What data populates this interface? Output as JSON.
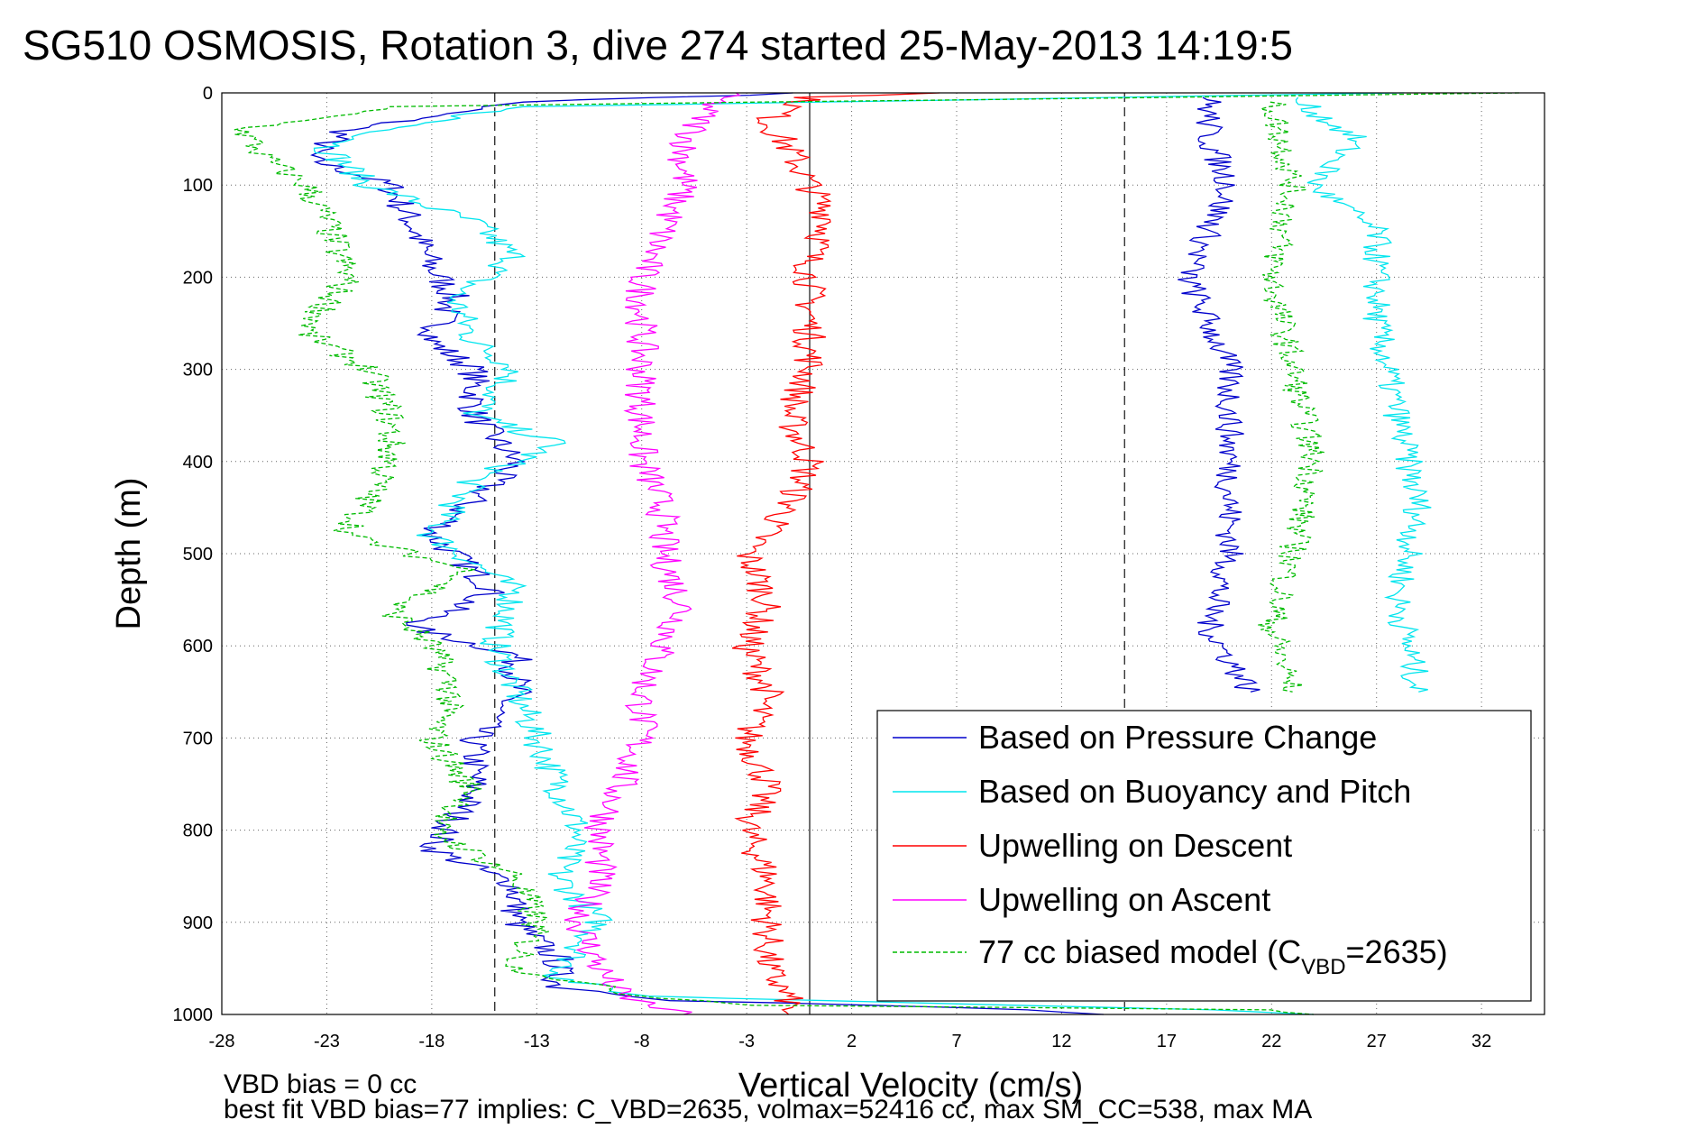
{
  "chart_data": {
    "type": "line",
    "title": "SG510 OSMOSIS, Rotation 3, dive 274 started 25-May-2013 14:19:5",
    "xlabel": "Vertical Velocity (cm/s)",
    "ylabel": "Depth (m)",
    "xlim": [
      -28,
      35
    ],
    "ylim": [
      1000,
      0
    ],
    "y_reversed": true,
    "x_ticks": [
      "-28",
      "-23",
      "-18",
      "-13",
      "-8",
      "-3",
      "2",
      "7",
      "12",
      "17",
      "22",
      "27",
      "32"
    ],
    "y_ticks": [
      "0",
      "100",
      "200",
      "300",
      "400",
      "500",
      "600",
      "700",
      "800",
      "900",
      "1000"
    ],
    "grid": true,
    "legend_position": "bottom-right",
    "reference_lines": [
      {
        "x": -15,
        "style": "dashed"
      },
      {
        "x": 0,
        "style": "solid"
      },
      {
        "x": 15,
        "style": "dashed"
      }
    ],
    "series": [
      {
        "name": "Based on Pressure Change",
        "color": "#0000cc",
        "style": "solid",
        "points": [
          [
            0,
            0
          ],
          [
            -14,
            10
          ],
          [
            -22,
            40
          ],
          [
            -24,
            70
          ],
          [
            -20,
            100
          ],
          [
            -19,
            140
          ],
          [
            -18,
            190
          ],
          [
            -17,
            220
          ],
          [
            -18,
            270
          ],
          [
            -16,
            300
          ],
          [
            -16,
            350
          ],
          [
            -14,
            400
          ],
          [
            -16,
            440
          ],
          [
            -18,
            480
          ],
          [
            -16,
            520
          ],
          [
            -15,
            540
          ],
          [
            -19,
            580
          ],
          [
            -14,
            610
          ],
          [
            -14,
            650
          ],
          [
            -16,
            700
          ],
          [
            -16,
            760
          ],
          [
            -18,
            820
          ],
          [
            -14,
            860
          ],
          [
            -14,
            900
          ],
          [
            -12,
            940
          ],
          [
            -12,
            970
          ],
          [
            -6,
            985
          ],
          [
            3,
            990
          ],
          [
            10,
            995
          ],
          [
            14,
            1000
          ]
        ]
      },
      {
        "name": "Based on Buoyancy and Pitch",
        "color": "#00e5ee",
        "style": "solid",
        "points": [
          [
            28,
            0
          ],
          [
            -14,
            15
          ],
          [
            -20,
            40
          ],
          [
            -23,
            60
          ],
          [
            -21,
            100
          ],
          [
            -16,
            140
          ],
          [
            -14,
            180
          ],
          [
            -17,
            220
          ],
          [
            -16,
            270
          ],
          [
            -14,
            300
          ],
          [
            -16,
            350
          ],
          [
            -12,
            380
          ],
          [
            -16,
            420
          ],
          [
            -18,
            480
          ],
          [
            -14,
            540
          ],
          [
            -15,
            600
          ],
          [
            -14,
            650
          ],
          [
            -13,
            700
          ],
          [
            -12,
            750
          ],
          [
            -11,
            800
          ],
          [
            -12,
            850
          ],
          [
            -10,
            900
          ],
          [
            -12,
            960
          ],
          [
            -8,
            980
          ],
          [
            10,
            990
          ],
          [
            20,
            995
          ],
          [
            24,
            1000
          ]
        ]
      },
      {
        "name": "Upwelling on Descent",
        "color": "#ff0000",
        "style": "solid",
        "points": [
          [
            6,
            0
          ],
          [
            0,
            5
          ],
          [
            -2,
            30
          ],
          [
            -1,
            60
          ],
          [
            0,
            100
          ],
          [
            1,
            140
          ],
          [
            0,
            180
          ],
          [
            0,
            220
          ],
          [
            0,
            260
          ],
          [
            0,
            300
          ],
          [
            -1,
            350
          ],
          [
            0,
            400
          ],
          [
            -1,
            450
          ],
          [
            -3,
            500
          ],
          [
            -2,
            550
          ],
          [
            -3,
            600
          ],
          [
            -2,
            650
          ],
          [
            -3,
            700
          ],
          [
            -2,
            750
          ],
          [
            -3,
            800
          ],
          [
            -2,
            850
          ],
          [
            -2,
            900
          ],
          [
            -2,
            950
          ],
          [
            -1,
            985
          ],
          [
            -1,
            1000
          ]
        ]
      },
      {
        "name": "Upwelling on Ascent",
        "color": "#ff00ff",
        "style": "solid",
        "points": [
          [
            -4,
            0
          ],
          [
            -5,
            20
          ],
          [
            -6,
            60
          ],
          [
            -6,
            100
          ],
          [
            -7,
            150
          ],
          [
            -8,
            200
          ],
          [
            -8,
            250
          ],
          [
            -8,
            300
          ],
          [
            -8,
            350
          ],
          [
            -8,
            400
          ],
          [
            -7,
            450
          ],
          [
            -7,
            500
          ],
          [
            -6,
            560
          ],
          [
            -7,
            600
          ],
          [
            -8,
            650
          ],
          [
            -8,
            700
          ],
          [
            -9,
            750
          ],
          [
            -10,
            800
          ],
          [
            -10,
            850
          ],
          [
            -11,
            900
          ],
          [
            -10,
            950
          ],
          [
            -9,
            980
          ],
          [
            -6,
            1000
          ]
        ]
      },
      {
        "name": "77 cc biased model (C_VBD=2635)",
        "color": "#00bb00",
        "style": "dashed",
        "points": [
          [
            34,
            0
          ],
          [
            -20,
            15
          ],
          [
            -27,
            40
          ],
          [
            -26,
            70
          ],
          [
            -24,
            100
          ],
          [
            -23,
            140
          ],
          [
            -22,
            200
          ],
          [
            -24,
            260
          ],
          [
            -21,
            300
          ],
          [
            -20,
            350
          ],
          [
            -20,
            400
          ],
          [
            -22,
            480
          ],
          [
            -16,
            520
          ],
          [
            -20,
            560
          ],
          [
            -18,
            600
          ],
          [
            -17,
            650
          ],
          [
            -18,
            700
          ],
          [
            -16,
            760
          ],
          [
            -18,
            800
          ],
          [
            -14,
            850
          ],
          [
            -13,
            900
          ],
          [
            -14,
            950
          ],
          [
            -8,
            980
          ],
          [
            -2,
            990
          ],
          [
            22,
            995
          ],
          [
            24,
            1000
          ]
        ]
      }
    ],
    "ascent_series": [
      {
        "color": "#0000cc",
        "points": [
          [
            19,
            5
          ],
          [
            19,
            50
          ],
          [
            20,
            100
          ],
          [
            18,
            200
          ],
          [
            20,
            300
          ],
          [
            20,
            400
          ],
          [
            20,
            500
          ],
          [
            19,
            580
          ],
          [
            21,
            650
          ]
        ]
      },
      {
        "color": "#00e5ee",
        "points": [
          [
            23,
            5
          ],
          [
            26,
            50
          ],
          [
            24,
            100
          ],
          [
            27,
            150
          ],
          [
            27,
            250
          ],
          [
            28,
            350
          ],
          [
            29,
            450
          ],
          [
            28,
            550
          ],
          [
            29,
            650
          ]
        ]
      },
      {
        "color": "#00bb00",
        "points": [
          [
            22,
            10
          ],
          [
            23,
            100
          ],
          [
            22,
            200
          ],
          [
            23,
            300
          ],
          [
            24,
            400
          ],
          [
            23,
            500
          ],
          [
            22,
            580
          ],
          [
            23,
            650
          ]
        ]
      }
    ],
    "legend_label_parts": {
      "main": "77 cc biased model (C",
      "sub": "VBD",
      "tail": "=2635)"
    },
    "annotations": [
      "VBD bias = 0 cc",
      "best fit VBD bias=77 implies: C_VBD=2635, volmax=52416 cc, max SM_CC=538, max MA"
    ]
  }
}
